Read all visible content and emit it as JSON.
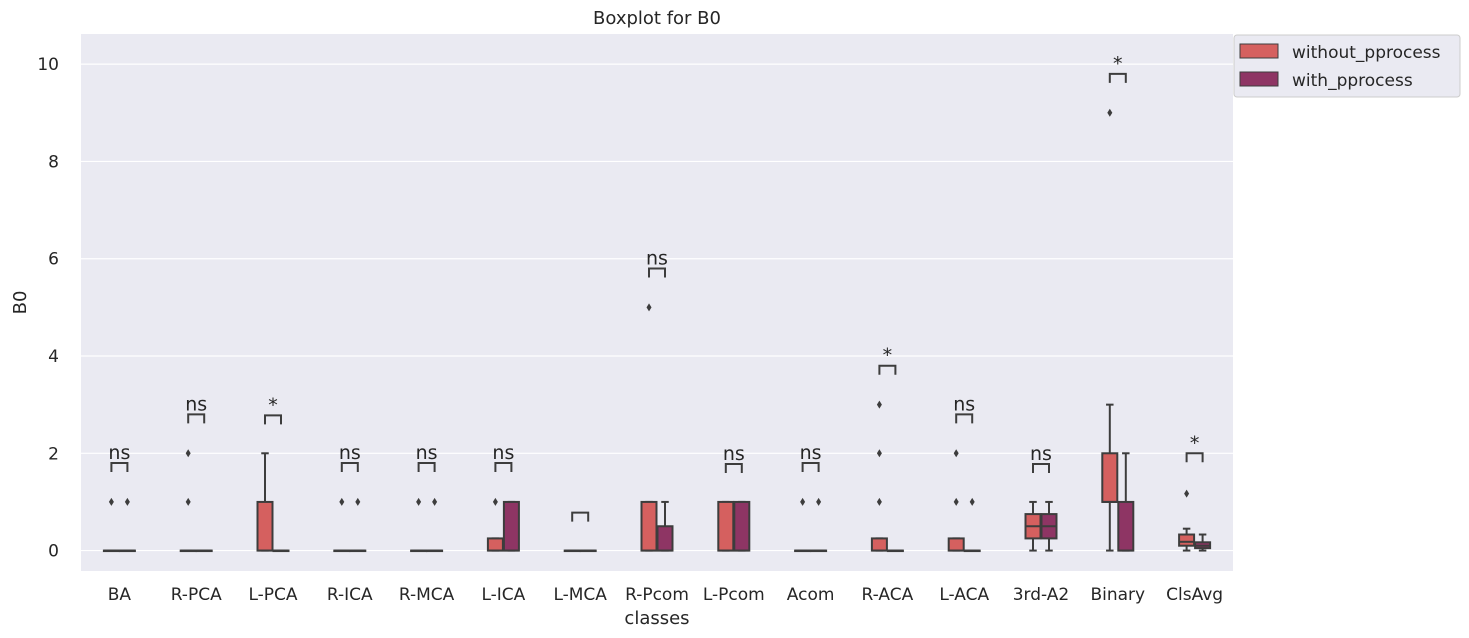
{
  "chart_data": {
    "type": "boxplot",
    "title": "Boxplot for B0",
    "xlabel": "classes",
    "ylabel": "B0",
    "ylim": [
      -0.42,
      10.62
    ],
    "yticks": [
      0,
      2,
      4,
      6,
      8,
      10
    ],
    "grid": true,
    "legend_position": "top-right (outside)",
    "categories": [
      "BA",
      "R-PCA",
      "L-PCA",
      "R-ICA",
      "R-MCA",
      "L-ICA",
      "L-MCA",
      "R-Pcom",
      "L-Pcom",
      "Acom",
      "R-ACA",
      "L-ACA",
      "3rd-A2",
      "Binary",
      "ClsAvg"
    ],
    "series": [
      {
        "name": "without_pprocess",
        "color": "#d5605f",
        "boxes": [
          {
            "q1": 0,
            "median": 0,
            "q3": 0,
            "whislo": 0,
            "whishi": 0,
            "fliers": [
              1
            ]
          },
          {
            "q1": 0,
            "median": 0,
            "q3": 0,
            "whislo": 0,
            "whishi": 0,
            "fliers": [
              1,
              2
            ]
          },
          {
            "q1": 0,
            "median": 0,
            "q3": 1,
            "whislo": 0,
            "whishi": 2,
            "fliers": []
          },
          {
            "q1": 0,
            "median": 0,
            "q3": 0,
            "whislo": 0,
            "whishi": 0,
            "fliers": [
              1
            ]
          },
          {
            "q1": 0,
            "median": 0,
            "q3": 0,
            "whislo": 0,
            "whishi": 0,
            "fliers": [
              1
            ]
          },
          {
            "q1": 0,
            "median": 0,
            "q3": 0.25,
            "whislo": 0,
            "whishi": 0.25,
            "fliers": [
              1
            ]
          },
          {
            "q1": 0,
            "median": 0,
            "q3": 0,
            "whislo": 0,
            "whishi": 0,
            "fliers": []
          },
          {
            "q1": 0,
            "median": 0,
            "q3": 1,
            "whislo": 0,
            "whishi": 1,
            "fliers": [
              5
            ]
          },
          {
            "q1": 0,
            "median": 0,
            "q3": 1,
            "whislo": 0,
            "whishi": 1,
            "fliers": []
          },
          {
            "q1": 0,
            "median": 0,
            "q3": 0,
            "whislo": 0,
            "whishi": 0,
            "fliers": [
              1
            ]
          },
          {
            "q1": 0,
            "median": 0,
            "q3": 0.25,
            "whislo": 0,
            "whishi": 0.25,
            "fliers": [
              1,
              2,
              3
            ]
          },
          {
            "q1": 0,
            "median": 0,
            "q3": 0.25,
            "whislo": 0,
            "whishi": 0.25,
            "fliers": [
              1,
              2
            ]
          },
          {
            "q1": 0.25,
            "median": 0.5,
            "q3": 0.75,
            "whislo": 0,
            "whishi": 1,
            "fliers": []
          },
          {
            "q1": 1,
            "median": 1,
            "q3": 2,
            "whislo": 0,
            "whishi": 3,
            "fliers": [
              9
            ]
          },
          {
            "q1": 0.1,
            "median": 0.18,
            "q3": 0.33,
            "whislo": 0,
            "whishi": 0.45,
            "fliers": [
              1.17
            ]
          }
        ]
      },
      {
        "name": "with_pprocess",
        "color": "#8e3564",
        "boxes": [
          {
            "q1": 0,
            "median": 0,
            "q3": 0,
            "whislo": 0,
            "whishi": 0,
            "fliers": [
              1
            ]
          },
          {
            "q1": 0,
            "median": 0,
            "q3": 0,
            "whislo": 0,
            "whishi": 0,
            "fliers": []
          },
          {
            "q1": 0,
            "median": 0,
            "q3": 0,
            "whislo": 0,
            "whishi": 0,
            "fliers": []
          },
          {
            "q1": 0,
            "median": 0,
            "q3": 0,
            "whislo": 0,
            "whishi": 0,
            "fliers": [
              1
            ]
          },
          {
            "q1": 0,
            "median": 0,
            "q3": 0,
            "whislo": 0,
            "whishi": 0,
            "fliers": [
              1
            ]
          },
          {
            "q1": 0,
            "median": 0,
            "q3": 1,
            "whislo": 0,
            "whishi": 1,
            "fliers": []
          },
          {
            "q1": 0,
            "median": 0,
            "q3": 0,
            "whislo": 0,
            "whishi": 0,
            "fliers": []
          },
          {
            "q1": 0,
            "median": 0,
            "q3": 0.5,
            "whislo": 0,
            "whishi": 1,
            "fliers": []
          },
          {
            "q1": 0,
            "median": 0,
            "q3": 1,
            "whislo": 0,
            "whishi": 1,
            "fliers": []
          },
          {
            "q1": 0,
            "median": 0,
            "q3": 0,
            "whislo": 0,
            "whishi": 0,
            "fliers": [
              1
            ]
          },
          {
            "q1": 0,
            "median": 0,
            "q3": 0,
            "whislo": 0,
            "whishi": 0,
            "fliers": []
          },
          {
            "q1": 0,
            "median": 0,
            "q3": 0,
            "whislo": 0,
            "whishi": 0,
            "fliers": [
              1
            ]
          },
          {
            "q1": 0.25,
            "median": 0.5,
            "q3": 0.75,
            "whislo": 0,
            "whishi": 1,
            "fliers": []
          },
          {
            "q1": 0,
            "median": 0,
            "q3": 1,
            "whislo": 0,
            "whishi": 2,
            "fliers": []
          },
          {
            "q1": 0.05,
            "median": 0.1,
            "q3": 0.17,
            "whislo": 0,
            "whishi": 0.33,
            "fliers": []
          }
        ]
      }
    ],
    "annotations": [
      {
        "category": "BA",
        "text": "ns",
        "y": 1.8
      },
      {
        "category": "R-PCA",
        "text": "ns",
        "y": 2.8
      },
      {
        "category": "L-PCA",
        "text": "*",
        "y": 2.78
      },
      {
        "category": "R-ICA",
        "text": "ns",
        "y": 1.8
      },
      {
        "category": "R-MCA",
        "text": "ns",
        "y": 1.8
      },
      {
        "category": "L-ICA",
        "text": "ns",
        "y": 1.8
      },
      {
        "category": "L-MCA",
        "text": "",
        "y": 0.78
      },
      {
        "category": "R-Pcom",
        "text": "ns",
        "y": 5.8
      },
      {
        "category": "L-Pcom",
        "text": "ns",
        "y": 1.78
      },
      {
        "category": "Acom",
        "text": "ns",
        "y": 1.8
      },
      {
        "category": "R-ACA",
        "text": "*",
        "y": 3.8
      },
      {
        "category": "L-ACA",
        "text": "ns",
        "y": 2.8
      },
      {
        "category": "3rd-A2",
        "text": "ns",
        "y": 1.78
      },
      {
        "category": "Binary",
        "text": "*",
        "y": 9.8
      },
      {
        "category": "ClsAvg",
        "text": "*",
        "y": 2.0
      }
    ]
  }
}
